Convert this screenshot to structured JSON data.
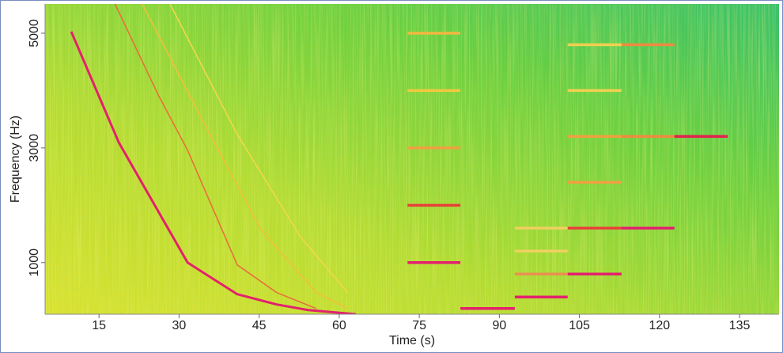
{
  "chart_data": {
    "type": "spectrogram",
    "xlabel": "Time (s)",
    "ylabel": "Frequency (Hz)",
    "xlim": [
      4.9,
      142.4
    ],
    "ylim": [
      100,
      5510
    ],
    "xticks": [
      15,
      30,
      45,
      60,
      75,
      90,
      105,
      120,
      135
    ],
    "yticks": [
      1000,
      3000,
      5000
    ],
    "chirps": [
      {
        "color": "#e3206e",
        "x": [
          9.8,
          18.7,
          31.6,
          40.9,
          48.3,
          54.2,
          63.1
        ],
        "y": [
          5028,
          3097,
          1000,
          449,
          270,
          172,
          100
        ]
      },
      {
        "color": "#e8703a",
        "x": [
          18.0,
          26.1,
          31.6,
          40.9,
          48.3,
          55.7
        ],
        "y": [
          5510,
          3924,
          2959,
          960,
          477,
          200
        ]
      },
      {
        "color": "#f2c03a",
        "x": [
          23.1,
          35.0,
          45.3,
          55.7,
          61.6
        ],
        "y": [
          5510,
          3373,
          1580,
          477,
          200
        ]
      },
      {
        "color": "#f0d84a",
        "x": [
          28.3,
          40.9,
          52.8,
          61.6
        ],
        "y": [
          5510,
          3235,
          1442,
          477
        ]
      }
    ],
    "tones": [
      {
        "x": [
          72.8,
          82.7
        ],
        "y": 1000,
        "color": "#e3206e"
      },
      {
        "x": [
          72.8,
          82.7
        ],
        "y": 2000,
        "color": "#e8403a"
      },
      {
        "x": [
          72.8,
          82.7
        ],
        "y": 3000,
        "color": "#f0a040"
      },
      {
        "x": [
          72.8,
          82.7
        ],
        "y": 4000,
        "color": "#f2c840"
      },
      {
        "x": [
          72.8,
          82.7
        ],
        "y": 5000,
        "color": "#f2b840"
      },
      {
        "x": [
          82.7,
          92.9
        ],
        "y": 200,
        "color": "#e3206e"
      },
      {
        "x": [
          92.9,
          102.8
        ],
        "y": 400,
        "color": "#e3206e"
      },
      {
        "x": [
          92.9,
          102.8
        ],
        "y": 800,
        "color": "#e89050"
      },
      {
        "x": [
          92.9,
          102.8
        ],
        "y": 1200,
        "color": "#f0d060"
      },
      {
        "x": [
          92.9,
          102.8
        ],
        "y": 1600,
        "color": "#f0d060"
      },
      {
        "x": [
          102.8,
          112.9
        ],
        "y": 800,
        "color": "#e3206e"
      },
      {
        "x": [
          102.8,
          112.9
        ],
        "y": 1600,
        "color": "#e8403a"
      },
      {
        "x": [
          102.8,
          112.9
        ],
        "y": 2400,
        "color": "#f0a040"
      },
      {
        "x": [
          102.8,
          112.9
        ],
        "y": 3200,
        "color": "#f0a040"
      },
      {
        "x": [
          102.8,
          112.9
        ],
        "y": 4000,
        "color": "#f2d050"
      },
      {
        "x": [
          102.8,
          112.9
        ],
        "y": 4800,
        "color": "#f2d050"
      },
      {
        "x": [
          112.9,
          122.8
        ],
        "y": 1600,
        "color": "#e3206e"
      },
      {
        "x": [
          112.9,
          122.8
        ],
        "y": 3200,
        "color": "#f08a40"
      },
      {
        "x": [
          112.9,
          122.8
        ],
        "y": 4800,
        "color": "#f08a40"
      },
      {
        "x": [
          122.8,
          132.8
        ],
        "y": 3200,
        "color": "#e3204e"
      }
    ]
  }
}
